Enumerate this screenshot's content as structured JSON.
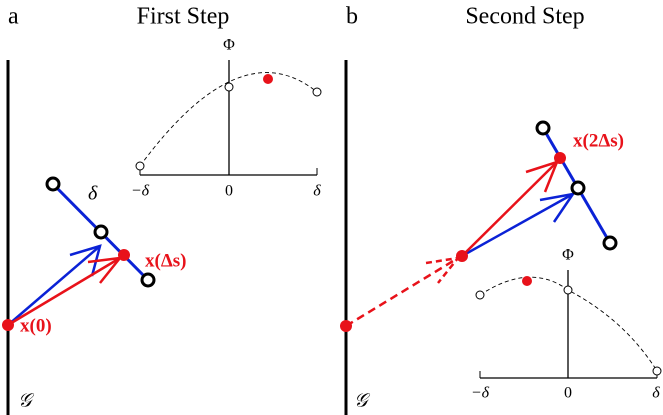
{
  "panels": [
    {
      "label": "a",
      "title": "First Step",
      "inset": {
        "y_label": "Φ",
        "ticks": [
          "−δ",
          "0",
          "δ"
        ]
      },
      "segment_label": "δ",
      "points": [
        "x(0)",
        "x(Δs)"
      ],
      "boundary": "𝒢"
    },
    {
      "label": "b",
      "title": "Second Step",
      "inset": {
        "y_label": "Φ",
        "ticks": [
          "−δ",
          "0",
          "δ"
        ]
      },
      "points": [
        "x(2Δs)"
      ],
      "boundary": "𝒢"
    }
  ]
}
